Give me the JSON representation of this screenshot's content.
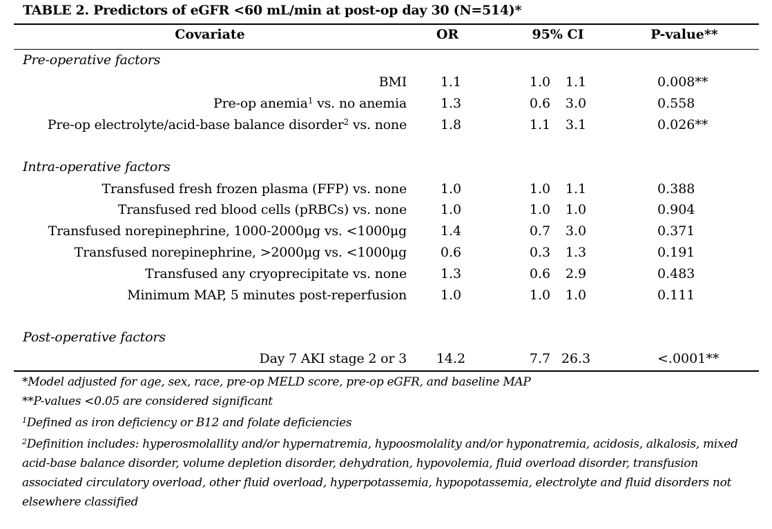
{
  "title": "TABLE 2. Predictors of eGFR <60 mL/min at post-op day 30 (N=514)*",
  "headers": {
    "covariate": "Covariate",
    "or": "OR",
    "ci": "95% CI",
    "p": "P-value**"
  },
  "sections": [
    {
      "label": "Pre-operative factors",
      "rows": [
        {
          "label": "BMI",
          "sup": "",
          "label_tail": "",
          "or": "1.1",
          "lo": "1.0",
          "hi": "1.1",
          "p": "0.008**"
        },
        {
          "label": "Pre-op anemia",
          "sup": "1",
          "label_tail": " vs. no anemia",
          "or": "1.3",
          "lo": "0.6",
          "hi": "3.0",
          "p": "0.558"
        },
        {
          "label": "Pre-op electrolyte/acid-base balance disorder",
          "sup": "2",
          "label_tail": " vs. none",
          "or": "1.8",
          "lo": "1.1",
          "hi": "3.1",
          "p": "0.026**"
        }
      ]
    },
    {
      "label": "Intra-operative factors",
      "rows": [
        {
          "label": "Transfused fresh frozen plasma (FFP) vs. none",
          "sup": "",
          "label_tail": "",
          "or": "1.0",
          "lo": "1.0",
          "hi": "1.1",
          "p": "0.388"
        },
        {
          "label": "Transfused red blood cells (pRBCs) vs. none",
          "sup": "",
          "label_tail": "",
          "or": "1.0",
          "lo": "1.0",
          "hi": "1.0",
          "p": "0.904"
        },
        {
          "label": "Transfused norepinephrine, 1000-2000μg vs. <1000μg",
          "sup": "",
          "label_tail": "",
          "or": "1.4",
          "lo": "0.7",
          "hi": "3.0",
          "p": "0.371"
        },
        {
          "label": "Transfused norepinephrine, >2000μg vs. <1000μg",
          "sup": "",
          "label_tail": "",
          "or": "0.6",
          "lo": "0.3",
          "hi": "1.3",
          "p": "0.191"
        },
        {
          "label": "Transfused any cryoprecipitate vs. none",
          "sup": "",
          "label_tail": "",
          "or": "1.3",
          "lo": "0.6",
          "hi": "2.9",
          "p": "0.483"
        },
        {
          "label": "Minimum MAP, 5 minutes post-reperfusion",
          "sup": "",
          "label_tail": "",
          "or": "1.0",
          "lo": "1.0",
          "hi": "1.0",
          "p": "0.111"
        }
      ]
    },
    {
      "label": "Post-operative factors",
      "rows": [
        {
          "label": "Day 7 AKI stage 2 or 3",
          "sup": "",
          "label_tail": "",
          "or": "14.2",
          "lo": "7.7",
          "hi": "26.3",
          "p": "<.0001**"
        }
      ]
    }
  ],
  "footnotes": {
    "model": "*Model adjusted for age, sex, race, pre-op MELD score, pre-op eGFR, and baseline MAP",
    "significance": "**P-values <0.05 are considered significant",
    "fn1_mark": "1",
    "fn1_text": "Defined as iron deficiency or B12 and folate deficiencies",
    "fn2_mark": "2",
    "fn2_text": "Definition includes: hyperosmolallity and/or hypernatremia, hypoosmolality and/or hyponatremia, acidosis, alkalosis, mixed acid-base balance disorder, volume depletion disorder, dehydration, hypovolemia, fluid overload disorder, transfusion associated circulatory overload, other fluid overload, hyperpotassemia, hypopotassemia, electrolyte and fluid disorders not elsewhere classified"
  }
}
